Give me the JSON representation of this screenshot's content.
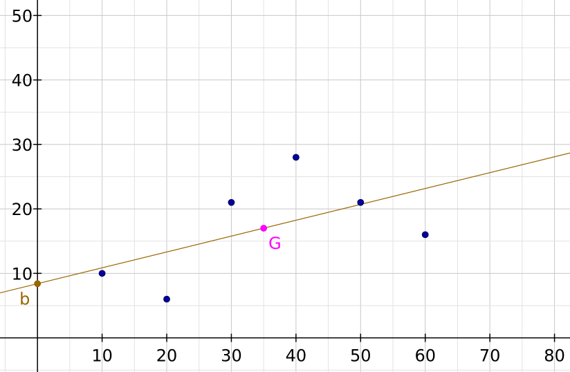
{
  "chart_data": {
    "type": "scatter",
    "title": "",
    "xlabel": "",
    "ylabel": "",
    "xlim": [
      -5.8,
      82.4
    ],
    "ylim": [
      -5.3,
      52.4
    ],
    "grid": true,
    "minor_grid_step": 5,
    "major_grid_step": 10,
    "x_ticks": [
      "10",
      "20",
      "30",
      "40",
      "50",
      "60",
      "70",
      "80"
    ],
    "y_ticks": [
      "10",
      "20",
      "30",
      "40",
      "50"
    ],
    "series": [
      {
        "points": [
          {
            "x": 10,
            "y": 10
          },
          {
            "x": 20,
            "y": 6
          },
          {
            "x": 30,
            "y": 21
          },
          {
            "x": 40,
            "y": 28
          },
          {
            "x": 50,
            "y": 21
          },
          {
            "x": 60,
            "y": 16
          }
        ],
        "color": "#0000a0"
      }
    ],
    "fit_line": {
      "intercept": 8.4,
      "slope": 0.246,
      "color": "#996600"
    },
    "labeled_points": [
      {
        "label": "b",
        "x": 0,
        "y": 8.4,
        "color": "#996600"
      },
      {
        "label": "G",
        "x": 35,
        "y": 17,
        "color": "#ff00ff"
      }
    ]
  }
}
